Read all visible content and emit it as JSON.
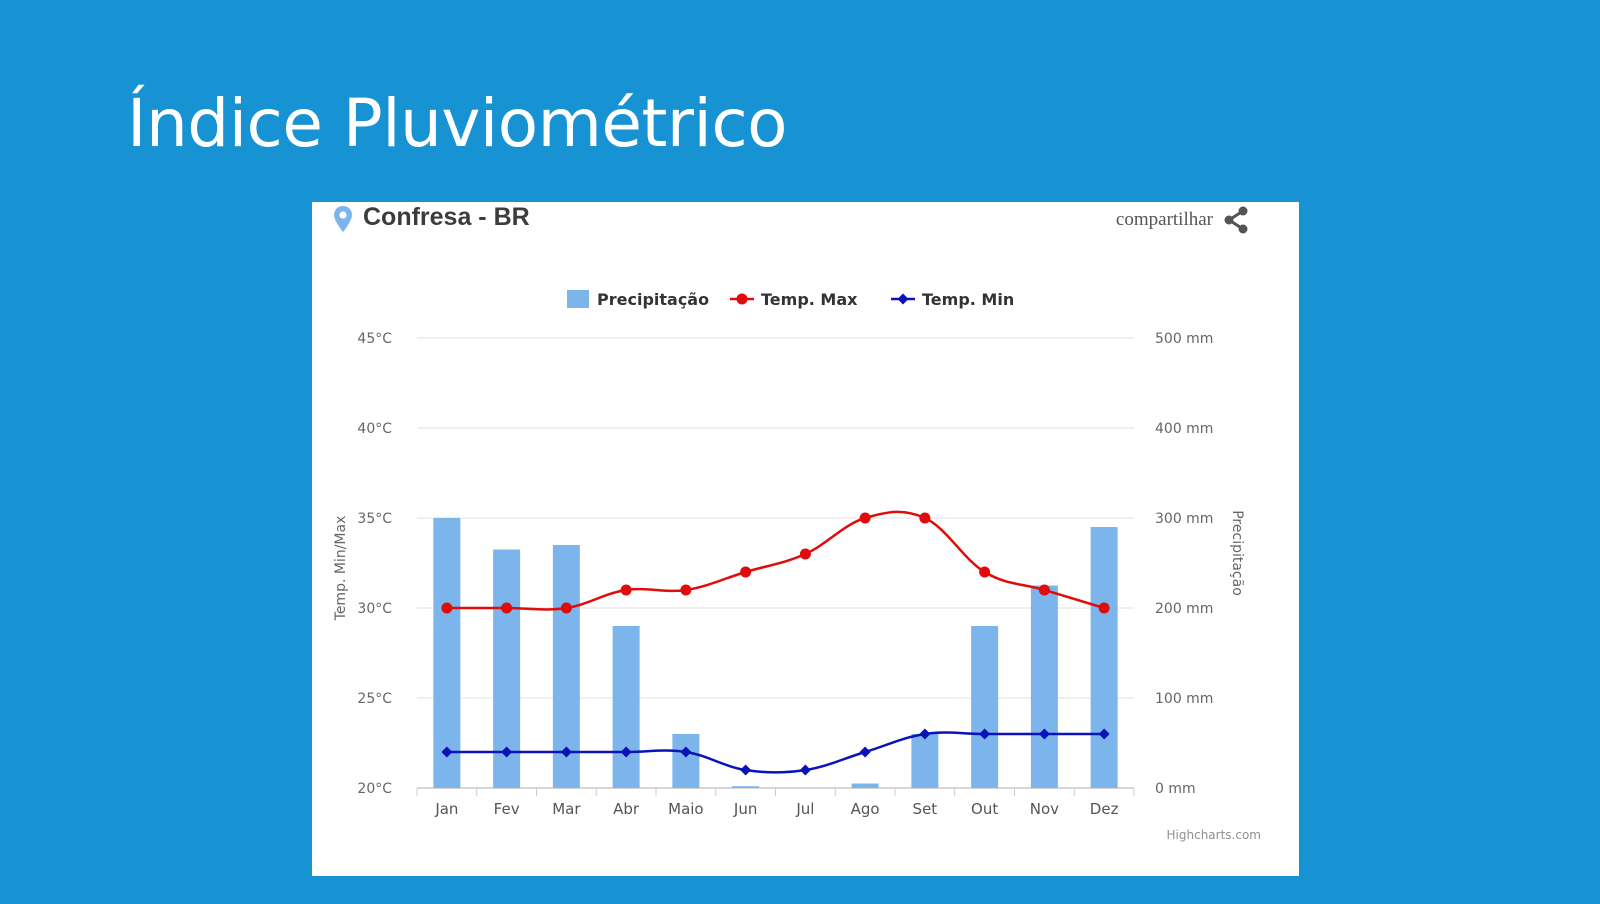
{
  "slide": {
    "title": "Índice Pluviométrico"
  },
  "card": {
    "location": "Confresa - BR",
    "share_label": "compartilhar",
    "credit": "Highcharts.com"
  },
  "colors": {
    "background": "#1793d4",
    "bars": "#7cb5ec",
    "temp_max": "#e00b0b",
    "temp_min": "#0a12b8",
    "pin": "#7cb5ec"
  },
  "icons": {
    "pin": "map-pin-icon",
    "share": "share-icon"
  },
  "chart_data": {
    "type": "bar",
    "categories": [
      "Jan",
      "Fev",
      "Mar",
      "Abr",
      "Maio",
      "Jun",
      "Jul",
      "Ago",
      "Set",
      "Out",
      "Nov",
      "Dez"
    ],
    "series": [
      {
        "name": "Precipitação",
        "type": "bar",
        "axis": "right",
        "unit": "mm",
        "values": [
          300,
          265,
          270,
          180,
          60,
          2,
          0,
          5,
          60,
          180,
          225,
          290
        ]
      },
      {
        "name": "Temp. Max",
        "type": "line",
        "axis": "left",
        "unit": "°C",
        "values": [
          30,
          30,
          30,
          31,
          31,
          32,
          33,
          35,
          35,
          32,
          31,
          30
        ]
      },
      {
        "name": "Temp. Min",
        "type": "line",
        "axis": "left",
        "unit": "°C",
        "values": [
          22,
          22,
          22,
          22,
          22,
          21,
          21,
          22,
          23,
          23,
          23,
          23
        ]
      }
    ],
    "left_axis": {
      "label": "Temp. Min/Max",
      "ylim": [
        20,
        45
      ],
      "ticks": [
        "20°C",
        "25°C",
        "30°C",
        "35°C",
        "40°C",
        "45°C"
      ]
    },
    "right_axis": {
      "label": "Precipitação",
      "ylim": [
        0,
        500
      ],
      "ticks": [
        "0 mm",
        "100 mm",
        "200 mm",
        "300 mm",
        "400 mm",
        "500 mm"
      ]
    },
    "grid": true,
    "legend_position": "top-center"
  }
}
